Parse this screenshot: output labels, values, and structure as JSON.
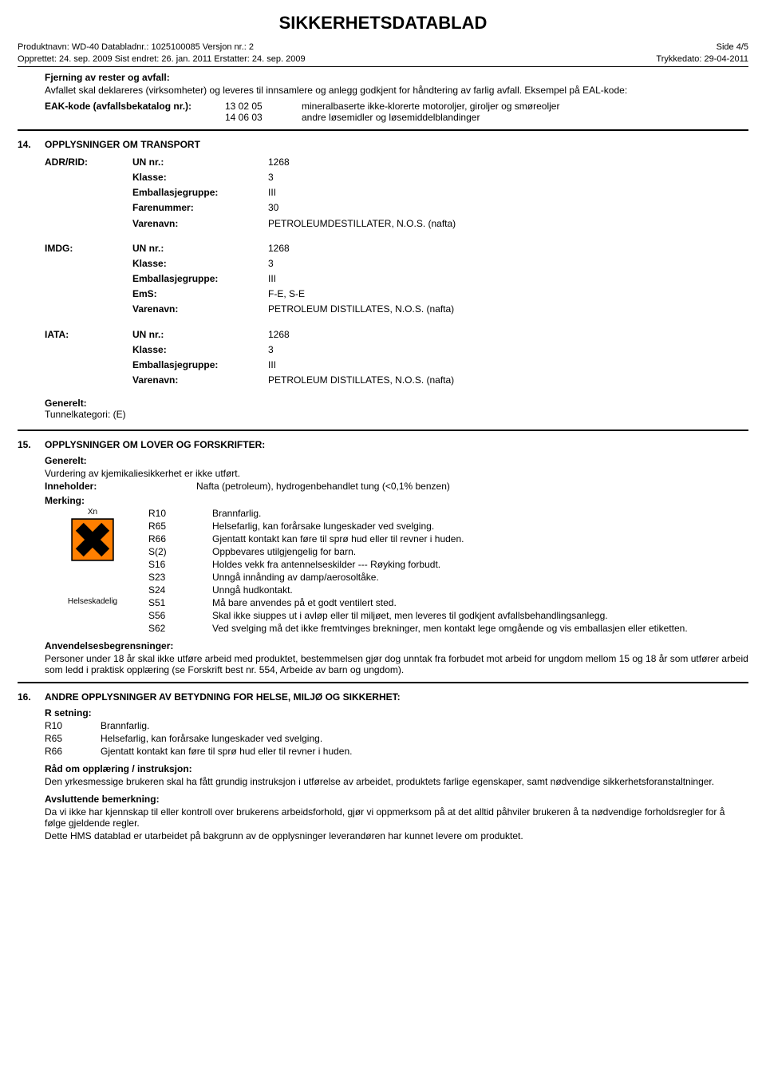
{
  "title": "SIKKERHETSDATABLAD",
  "meta": {
    "line1_left": "Produktnavn: WD-40 Databladnr.: 1025100085 Versjon nr.: 2",
    "line1_right": "Side 4/5",
    "line2_left": "Opprettet: 24. sep. 2009 Sist endret: 26. jan. 2011 Erstatter: 24. sep. 2009",
    "line2_right": "Trykkedato: 29-04-2011"
  },
  "disposal": {
    "heading": "Fjerning av rester og avfall:",
    "text": "Avfallet skal deklareres (virksomheter) og leveres til innsamlere og anlegg godkjent for håndtering av farlig avfall. Eksempel på EAL-kode:",
    "eak_label": "EAK-kode (avfallsbekatalog nr.):",
    "rows": [
      {
        "code": "13 02 05",
        "desc": "mineralbaserte ikke-klorerte motoroljer, giroljer og smøreoljer"
      },
      {
        "code": "14 06 03",
        "desc": "andre løsemidler og løsemiddelblandinger"
      }
    ]
  },
  "sec14": {
    "num": "14.",
    "heading": "OPPLYSNINGER OM TRANSPORT",
    "blocks": [
      {
        "mode": "ADR/RID:",
        "rows": [
          {
            "k": "UN nr.:",
            "v": "1268"
          },
          {
            "k": "Klasse:",
            "v": "3"
          },
          {
            "k": "Emballasjegruppe:",
            "v": "III"
          },
          {
            "k": "Farenummer:",
            "v": "30"
          },
          {
            "k": "Varenavn:",
            "v": "PETROLEUMDESTILLATER, N.O.S. (nafta)"
          }
        ]
      },
      {
        "mode": "IMDG:",
        "rows": [
          {
            "k": "UN nr.:",
            "v": "1268"
          },
          {
            "k": "Klasse:",
            "v": "3"
          },
          {
            "k": "Emballasjegruppe:",
            "v": "III"
          },
          {
            "k": "EmS:",
            "v": "F-E, S-E"
          },
          {
            "k": "Varenavn:",
            "v": "PETROLEUM DISTILLATES, N.O.S. (nafta)"
          }
        ]
      },
      {
        "mode": "IATA:",
        "rows": [
          {
            "k": "UN nr.:",
            "v": "1268"
          },
          {
            "k": "Klasse:",
            "v": "3"
          },
          {
            "k": "Emballasjegruppe:",
            "v": "III"
          },
          {
            "k": "Varenavn:",
            "v": "PETROLEUM DISTILLATES, N.O.S. (nafta)"
          }
        ]
      }
    ],
    "generelt_label": "Generelt:",
    "generelt_text": "Tunnelkategori: (E)"
  },
  "sec15": {
    "num": "15.",
    "heading": "OPPLYSNINGER OM LOVER OG FORSKRIFTER:",
    "generelt_label": "Generelt:",
    "generelt_text": "Vurdering av kjemikaliesikkerhet er ikke utført.",
    "inneholder_label": "Inneholder:",
    "inneholder_text": "Nafta (petroleum), hydrogenbehandlet tung (<0,1% benzen)",
    "merking_label": "Merking:",
    "icon_label_top": "Xn",
    "icon_label_bottom": "Helseskadelig",
    "icon_colors": {
      "bg": "#ff7f00",
      "border": "#000000",
      "x": "#000000"
    },
    "merk_rows": [
      {
        "code": "R10",
        "text": "Brannfarlig."
      },
      {
        "code": "R65",
        "text": "Helsefarlig, kan forårsake lungeskader ved svelging."
      },
      {
        "code": "R66",
        "text": "Gjentatt kontakt kan føre til sprø hud eller til revner i huden."
      },
      {
        "code": "S(2)",
        "text": "Oppbevares utilgjengelig for barn."
      },
      {
        "code": "S16",
        "text": "Holdes vekk fra antennelseskilder --- Røyking forbudt."
      },
      {
        "code": "S23",
        "text": "Unngå innånding av damp/aerosoltåke."
      },
      {
        "code": "S24",
        "text": "Unngå hudkontakt."
      },
      {
        "code": "S51",
        "text": "Må bare anvendes på et godt ventilert sted."
      },
      {
        "code": "S56",
        "text": "Skal ikke siuppes ut i avløp eller til miljøet, men leveres til godkjent avfallsbehandlingsanlegg."
      },
      {
        "code": "S62",
        "text": "Ved svelging må det ikke fremtvinges brekninger, men kontakt lege omgående og vis emballasjen eller etiketten."
      }
    ],
    "anv_label": "Anvendelsesbegrensninger:",
    "anv_text": "Personer under 18 år skal ikke utføre arbeid med produktet, bestemmelsen gjør dog unntak fra forbudet mot arbeid for ungdom mellom 15 og 18 år som utfører arbeid som ledd i praktisk opplæring (se Forskrift best nr. 554, Arbeide av barn og ungdom)."
  },
  "sec16": {
    "num": "16.",
    "heading": "ANDRE OPPLYSNINGER AV BETYDNING FOR HELSE, MILJØ OG SIKKERHET:",
    "rsetning_label": "R setning:",
    "rsetning_rows": [
      {
        "code": "R10",
        "text": "Brannfarlig."
      },
      {
        "code": "R65",
        "text": "Helsefarlig, kan forårsake lungeskader ved svelging."
      },
      {
        "code": "R66",
        "text": "Gjentatt kontakt kan føre til sprø hud eller til revner i huden."
      }
    ],
    "raad_label": "Råd om opplæring / instruksjon:",
    "raad_text": "Den yrkesmessige brukeren skal ha fått grundig instruksjon i utførelse av arbeidet, produktets farlige egenskaper, samt nødvendige sikkerhetsforanstaltninger.",
    "avsl_label": "Avsluttende bemerkning:",
    "avsl_text1": "Da vi ikke har kjennskap til eller kontroll over brukerens arbeidsforhold, gjør vi oppmerksom på at det alltid påhviler brukeren å ta nødvendige forholdsregler for å følge gjeldende regler.",
    "avsl_text2": "Dette HMS datablad er utarbeidet på bakgrunn av de opplysninger leverandøren har kunnet levere om produktet."
  }
}
